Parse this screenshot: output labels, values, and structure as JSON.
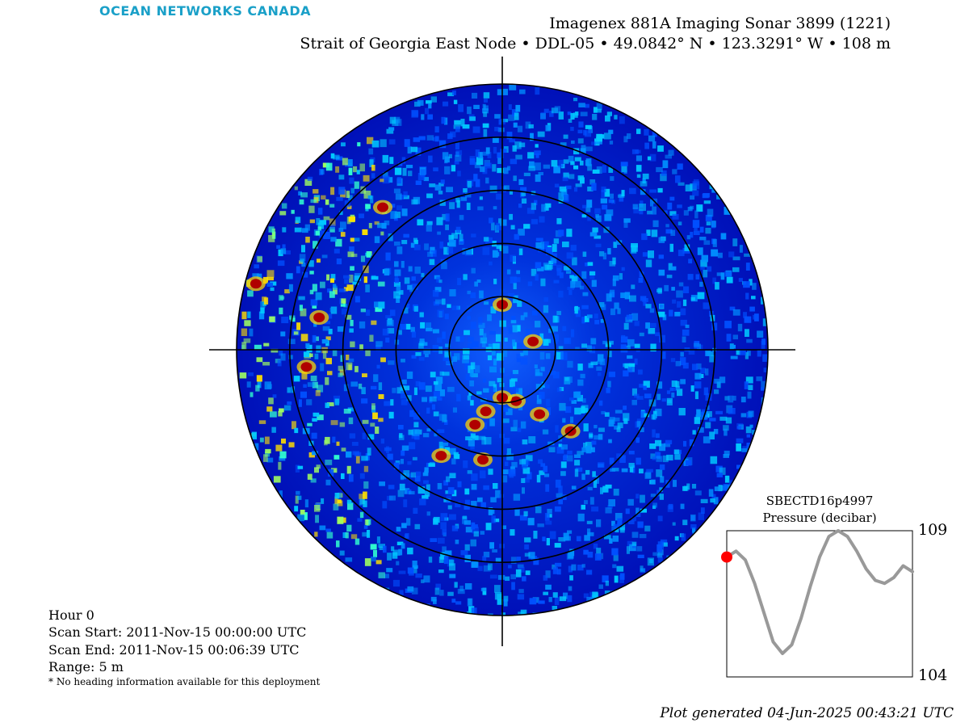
{
  "brand": "OCEAN NETWORKS CANADA",
  "title": {
    "line1": "Imagenex 881A Imaging Sonar 3899 (1221)",
    "line2": "Strait of Georgia East Node • DDL-05 • 49.0842° N • 123.3291° W • 108 m"
  },
  "info": {
    "hour": "Hour 0",
    "scan_start": "Scan Start: 2011-Nov-15 00:00:00 UTC",
    "scan_end": "Scan End: 2011-Nov-15 00:06:39 UTC",
    "range": "Range: 5 m",
    "note": "* No heading information available for this deployment"
  },
  "footer": "Plot generated 04-Jun-2025 00:43:21 UTC",
  "colors": {
    "background": "#00008c",
    "high_return": "#b00000",
    "pressure_line": "#999999",
    "marker": "#ff0000",
    "brand": "#1aa0c8"
  },
  "chart_data": [
    {
      "type": "heatmap",
      "title": "Imagenex 881A Imaging Sonar 3899 (1221)",
      "subtitle": "Strait of Georgia East Node • DDL-05 • 49.0842° N • 123.3291° W • 108 m",
      "projection": "polar",
      "range_m": 5,
      "colormap": "jet",
      "grid": true,
      "range_rings": 5,
      "strong_return_blobs": [
        {
          "bearing_deg": 0,
          "range_m": 0.85
        },
        {
          "bearing_deg": 75,
          "range_m": 0.6
        },
        {
          "bearing_deg": 200,
          "range_m": 1.5
        },
        {
          "bearing_deg": 195,
          "range_m": 1.2
        },
        {
          "bearing_deg": 190,
          "range_m": 2.1
        },
        {
          "bearing_deg": 165,
          "range_m": 1.0
        },
        {
          "bearing_deg": 150,
          "range_m": 1.4
        },
        {
          "bearing_deg": 140,
          "range_m": 2.0
        },
        {
          "bearing_deg": 180,
          "range_m": 0.9
        },
        {
          "bearing_deg": 210,
          "range_m": 2.3
        },
        {
          "bearing_deg": 265,
          "range_m": 3.7
        },
        {
          "bearing_deg": 280,
          "range_m": 3.5
        },
        {
          "bearing_deg": 285,
          "range_m": 4.8
        },
        {
          "bearing_deg": 320,
          "range_m": 3.5
        }
      ]
    },
    {
      "type": "line",
      "title": "SBECTD16p4997",
      "ylabel": "Pressure (decibar)",
      "ylim": [
        104,
        109
      ],
      "yticks": [
        104,
        109
      ],
      "x": [
        0,
        0.5,
        1,
        1.5,
        2,
        2.5,
        3,
        3.5,
        4,
        4.5,
        5,
        5.5,
        6,
        6.5,
        7,
        7.5,
        8,
        8.5,
        9,
        9.5,
        10
      ],
      "values": [
        108.1,
        108.3,
        108.0,
        107.2,
        106.2,
        105.2,
        104.8,
        105.1,
        106.0,
        107.1,
        108.1,
        108.8,
        109.0,
        108.8,
        108.3,
        107.7,
        107.3,
        107.2,
        107.4,
        107.8,
        107.6
      ],
      "current_index": 0
    }
  ]
}
